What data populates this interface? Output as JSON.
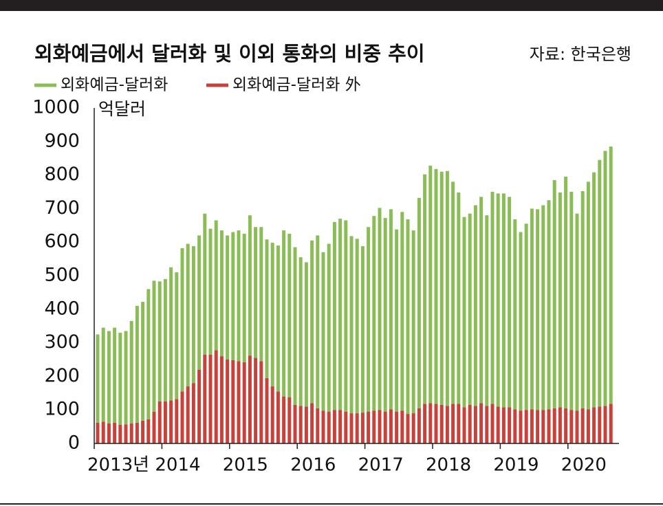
{
  "chart_data": {
    "type": "stacked_bar",
    "title": "외화예금에서 달러화 및 이외 통화의 비중 추이",
    "source": "자료: 한국은행",
    "y_label": "억달러",
    "categories": [
      "2013년",
      null,
      null,
      null,
      null,
      null,
      null,
      null,
      null,
      null,
      null,
      null,
      "2014",
      null,
      null,
      null,
      null,
      null,
      null,
      null,
      null,
      null,
      null,
      null,
      "2015",
      null,
      null,
      null,
      null,
      null,
      null,
      null,
      null,
      null,
      null,
      null,
      "2016",
      null,
      null,
      null,
      null,
      null,
      null,
      null,
      null,
      null,
      null,
      null,
      "2017",
      null,
      null,
      null,
      null,
      null,
      null,
      null,
      null,
      null,
      null,
      null,
      "2018",
      null,
      null,
      null,
      null,
      null,
      null,
      null,
      null,
      null,
      null,
      null,
      "2019",
      null,
      null,
      null,
      null,
      null,
      null,
      null,
      null,
      null,
      null,
      null,
      "2020",
      null,
      null,
      null,
      null,
      null,
      null,
      null
    ],
    "series": [
      {
        "name": "외화예금-달러화",
        "color": "#8bbd57",
        "values": [
          263,
          280,
          275,
          283,
          274,
          278,
          305,
          348,
          354,
          388,
          390,
          358,
          365,
          397,
          378,
          427,
          425,
          408,
          400,
          420,
          375,
          387,
          375,
          370,
          382,
          390,
          383,
          418,
          390,
          400,
          413,
          428,
          435,
          495,
          487,
          470,
          443,
          430,
          485,
          515,
          472,
          500,
          560,
          570,
          570,
          528,
          520,
          496,
          550,
          580,
          602,
          577,
          596,
          543,
          592,
          580,
          545,
          627,
          684,
          708,
          700,
          695,
          700,
          662,
          630,
          567,
          570,
          598,
          615,
          568,
          632,
          635,
          637,
          627,
          566,
          532,
          555,
          598,
          598,
          610,
          623,
          680,
          640,
          690,
          650,
          587,
          647,
          678,
          700,
          735,
          760,
          767
        ]
      },
      {
        "name": "외화예금-달러화 外",
        "color": "#c9413b",
        "values": [
          62,
          65,
          60,
          62,
          56,
          57,
          60,
          62,
          68,
          72,
          95,
          125,
          125,
          128,
          132,
          155,
          170,
          180,
          220,
          265,
          265,
          278,
          260,
          250,
          248,
          245,
          242,
          262,
          255,
          245,
          195,
          170,
          155,
          140,
          138,
          115,
          112,
          110,
          120,
          105,
          98,
          95,
          100,
          100,
          95,
          90,
          90,
          92,
          95,
          98,
          100,
          95,
          102,
          95,
          98,
          88,
          90,
          105,
          118,
          120,
          118,
          115,
          112,
          118,
          118,
          108,
          115,
          112,
          120,
          112,
          118,
          110,
          108,
          108,
          102,
          98,
          100,
          102,
          100,
          100,
          102,
          105,
          108,
          105,
          100,
          98,
          105,
          102,
          108,
          110,
          112,
          118
        ]
      }
    ],
    "ylim": [
      0,
      1000
    ],
    "yticks": [
      0,
      100,
      200,
      300,
      400,
      500,
      600,
      700,
      800,
      900,
      1000
    ],
    "grid": false
  }
}
